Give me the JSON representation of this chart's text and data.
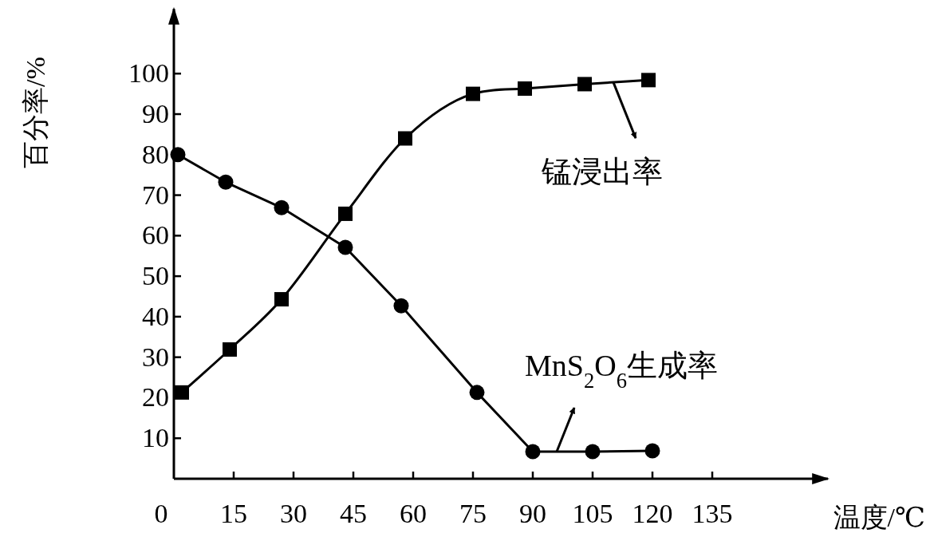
{
  "chart_data": {
    "type": "line",
    "xlabel": "温度/℃",
    "ylabel": "百分率/%",
    "xlim": [
      0,
      164
    ],
    "ylim": [
      0,
      116
    ],
    "xticks": [
      0,
      15,
      30,
      45,
      60,
      75,
      90,
      105,
      120,
      135
    ],
    "yticks": [
      10,
      20,
      30,
      40,
      50,
      60,
      70,
      80,
      90,
      100
    ],
    "grid": false,
    "series": [
      {
        "name": "锰浸出率",
        "color": "#000000",
        "marker": "square",
        "x": [
          2,
          14,
          27,
          43,
          58,
          75,
          88,
          103,
          119
        ],
        "values": [
          21.3,
          31.9,
          44.3,
          65.4,
          84,
          95,
          96.3,
          97.4,
          98.4
        ]
      },
      {
        "name": "MnS$_{2}$O$_{6}$生成率",
        "color": "#000000",
        "marker": "circle",
        "x": [
          1,
          13,
          27,
          43,
          57,
          76,
          90,
          105,
          120
        ],
        "values": [
          80,
          73.2,
          66.9,
          57.1,
          42.7,
          21.3,
          6.7,
          6.7,
          6.9
        ]
      }
    ]
  }
}
